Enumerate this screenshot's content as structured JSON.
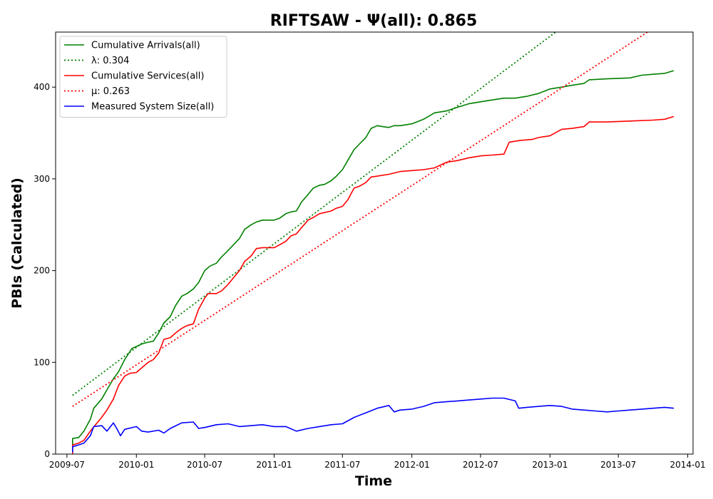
{
  "chart_data": {
    "type": "line",
    "title": "RIFTSAW -  Ψ(all): 0.865",
    "xlabel": "Time",
    "ylabel": "PBIs (Calculated)",
    "xlim": [
      "2009-06-01",
      "2014-01-15"
    ],
    "ylim": [
      0,
      460
    ],
    "x_ticks": [
      "2009-07-01",
      "2010-01-01",
      "2010-07-01",
      "2011-01-01",
      "2011-07-01",
      "2012-01-01",
      "2012-07-01",
      "2013-01-01",
      "2013-07-01",
      "2014-01-01"
    ],
    "x_tick_labels": [
      "2009-07",
      "2010-01",
      "2010-07",
      "2011-01",
      "2011-07",
      "2012-01",
      "2012-07",
      "2013-01",
      "2013-07",
      "2014-01"
    ],
    "y_ticks": [
      0,
      100,
      200,
      300,
      400
    ],
    "y_tick_labels": [
      "0",
      "100",
      "200",
      "300",
      "400"
    ],
    "grid": false,
    "legend_position": "upper-left",
    "series": [
      {
        "name": "Cumulative Arrivals(all)",
        "color": "#008000",
        "style": "solid",
        "points": [
          [
            "2009-07-16",
            0
          ],
          [
            "2009-07-16",
            17
          ],
          [
            "2009-08-01",
            18
          ],
          [
            "2009-08-15",
            25
          ],
          [
            "2009-09-01",
            38
          ],
          [
            "2009-09-10",
            50
          ],
          [
            "2009-10-01",
            60
          ],
          [
            "2009-10-15",
            70
          ],
          [
            "2009-11-01",
            82
          ],
          [
            "2009-11-15",
            90
          ],
          [
            "2009-12-01",
            103
          ],
          [
            "2009-12-20",
            115
          ],
          [
            "2010-01-15",
            120
          ],
          [
            "2010-02-01",
            122
          ],
          [
            "2010-02-15",
            123
          ],
          [
            "2010-03-01",
            132
          ],
          [
            "2010-03-15",
            143
          ],
          [
            "2010-04-01",
            150
          ],
          [
            "2010-04-15",
            162
          ],
          [
            "2010-05-01",
            172
          ],
          [
            "2010-05-15",
            175
          ],
          [
            "2010-06-01",
            180
          ],
          [
            "2010-06-15",
            187
          ],
          [
            "2010-07-01",
            200
          ],
          [
            "2010-07-15",
            205
          ],
          [
            "2010-08-01",
            208
          ],
          [
            "2010-08-15",
            215
          ],
          [
            "2010-09-01",
            222
          ],
          [
            "2010-09-15",
            228
          ],
          [
            "2010-10-01",
            235
          ],
          [
            "2010-10-15",
            245
          ],
          [
            "2010-11-01",
            250
          ],
          [
            "2010-11-15",
            253
          ],
          [
            "2010-12-01",
            255
          ],
          [
            "2011-01-01",
            255
          ],
          [
            "2011-01-15",
            257
          ],
          [
            "2011-02-01",
            262
          ],
          [
            "2011-02-15",
            264
          ],
          [
            "2011-03-01",
            265
          ],
          [
            "2011-03-15",
            275
          ],
          [
            "2011-04-01",
            283
          ],
          [
            "2011-04-15",
            290
          ],
          [
            "2011-05-01",
            293
          ],
          [
            "2011-05-15",
            294
          ],
          [
            "2011-06-01",
            298
          ],
          [
            "2011-06-15",
            303
          ],
          [
            "2011-07-01",
            310
          ],
          [
            "2011-07-15",
            320
          ],
          [
            "2011-08-01",
            332
          ],
          [
            "2011-08-15",
            338
          ],
          [
            "2011-09-01",
            345
          ],
          [
            "2011-09-15",
            355
          ],
          [
            "2011-10-01",
            358
          ],
          [
            "2011-10-15",
            357
          ],
          [
            "2011-11-01",
            356
          ],
          [
            "2011-11-15",
            358
          ],
          [
            "2011-12-01",
            358
          ],
          [
            "2012-01-01",
            360
          ],
          [
            "2012-02-01",
            365
          ],
          [
            "2012-03-01",
            372
          ],
          [
            "2012-04-01",
            374
          ],
          [
            "2012-05-01",
            378
          ],
          [
            "2012-06-01",
            382
          ],
          [
            "2012-07-01",
            384
          ],
          [
            "2012-08-01",
            386
          ],
          [
            "2012-09-01",
            388
          ],
          [
            "2012-10-01",
            388
          ],
          [
            "2012-11-01",
            390
          ],
          [
            "2012-12-01",
            393
          ],
          [
            "2013-01-01",
            398
          ],
          [
            "2013-02-01",
            400
          ],
          [
            "2013-03-01",
            402
          ],
          [
            "2013-04-01",
            404
          ],
          [
            "2013-04-15",
            408
          ],
          [
            "2013-06-01",
            409
          ],
          [
            "2013-08-01",
            410
          ],
          [
            "2013-09-01",
            413
          ],
          [
            "2013-10-01",
            414
          ],
          [
            "2013-11-01",
            415
          ],
          [
            "2013-11-25",
            418
          ]
        ]
      },
      {
        "name": "λ: 0.304",
        "color": "#008000",
        "style": "dotted",
        "points": [
          [
            "2009-07-16",
            64
          ],
          [
            "2013-12-15",
            563
          ]
        ]
      },
      {
        "name": "Cumulative Services(all)",
        "color": "#ff0000",
        "style": "solid",
        "points": [
          [
            "2009-07-16",
            0
          ],
          [
            "2009-07-16",
            10
          ],
          [
            "2009-08-01",
            12
          ],
          [
            "2009-08-15",
            15
          ],
          [
            "2009-09-01",
            25
          ],
          [
            "2009-09-15",
            32
          ],
          [
            "2009-10-01",
            40
          ],
          [
            "2009-10-15",
            48
          ],
          [
            "2009-11-01",
            60
          ],
          [
            "2009-11-15",
            75
          ],
          [
            "2009-12-01",
            85
          ],
          [
            "2009-12-15",
            88
          ],
          [
            "2010-01-01",
            89
          ],
          [
            "2010-02-01",
            100
          ],
          [
            "2010-02-15",
            103
          ],
          [
            "2010-03-01",
            110
          ],
          [
            "2010-03-15",
            125
          ],
          [
            "2010-04-01",
            127
          ],
          [
            "2010-04-15",
            132
          ],
          [
            "2010-05-01",
            137
          ],
          [
            "2010-05-15",
            140
          ],
          [
            "2010-06-01",
            142
          ],
          [
            "2010-06-15",
            158
          ],
          [
            "2010-07-01",
            170
          ],
          [
            "2010-07-10",
            175
          ],
          [
            "2010-08-01",
            175
          ],
          [
            "2010-08-15",
            178
          ],
          [
            "2010-09-01",
            185
          ],
          [
            "2010-09-15",
            192
          ],
          [
            "2010-10-01",
            200
          ],
          [
            "2010-10-15",
            210
          ],
          [
            "2010-11-01",
            216
          ],
          [
            "2010-11-15",
            224
          ],
          [
            "2010-12-01",
            225
          ],
          [
            "2011-01-01",
            225
          ],
          [
            "2011-01-15",
            228
          ],
          [
            "2011-02-01",
            232
          ],
          [
            "2011-02-15",
            238
          ],
          [
            "2011-03-01",
            240
          ],
          [
            "2011-03-15",
            247
          ],
          [
            "2011-04-01",
            255
          ],
          [
            "2011-04-15",
            258
          ],
          [
            "2011-05-01",
            262
          ],
          [
            "2011-06-01",
            265
          ],
          [
            "2011-06-15",
            268
          ],
          [
            "2011-07-01",
            270
          ],
          [
            "2011-07-15",
            277
          ],
          [
            "2011-08-01",
            290
          ],
          [
            "2011-08-15",
            292
          ],
          [
            "2011-09-01",
            296
          ],
          [
            "2011-09-15",
            302
          ],
          [
            "2011-10-01",
            303
          ],
          [
            "2011-11-01",
            305
          ],
          [
            "2011-12-01",
            308
          ],
          [
            "2012-01-01",
            309
          ],
          [
            "2012-02-01",
            310
          ],
          [
            "2012-03-01",
            312
          ],
          [
            "2012-04-01",
            318
          ],
          [
            "2012-05-01",
            320
          ],
          [
            "2012-06-01",
            323
          ],
          [
            "2012-07-01",
            325
          ],
          [
            "2012-08-01",
            326
          ],
          [
            "2012-09-01",
            327
          ],
          [
            "2012-09-15",
            340
          ],
          [
            "2012-10-15",
            342
          ],
          [
            "2012-11-15",
            343
          ],
          [
            "2012-12-01",
            345
          ],
          [
            "2013-01-01",
            347
          ],
          [
            "2013-02-01",
            354
          ],
          [
            "2013-03-01",
            355
          ],
          [
            "2013-04-01",
            357
          ],
          [
            "2013-04-15",
            362
          ],
          [
            "2013-06-01",
            362
          ],
          [
            "2013-08-01",
            363
          ],
          [
            "2013-10-01",
            364
          ],
          [
            "2013-11-01",
            365
          ],
          [
            "2013-11-25",
            368
          ]
        ]
      },
      {
        "name": "μ: 0.263",
        "color": "#ff0000",
        "style": "dotted",
        "points": [
          [
            "2009-07-16",
            52
          ],
          [
            "2013-12-15",
            484
          ]
        ]
      },
      {
        "name": "Measured System Size(all)",
        "color": "#0000ff",
        "style": "solid",
        "points": [
          [
            "2009-07-16",
            2
          ],
          [
            "2009-07-16",
            8
          ],
          [
            "2009-08-01",
            10
          ],
          [
            "2009-08-15",
            12
          ],
          [
            "2009-09-01",
            20
          ],
          [
            "2009-09-10",
            30
          ],
          [
            "2009-10-01",
            31
          ],
          [
            "2009-10-15",
            25
          ],
          [
            "2009-11-01",
            34
          ],
          [
            "2009-11-10",
            28
          ],
          [
            "2009-11-20",
            20
          ],
          [
            "2009-12-01",
            27
          ],
          [
            "2010-01-01",
            30
          ],
          [
            "2010-01-15",
            25
          ],
          [
            "2010-02-01",
            24
          ],
          [
            "2010-03-01",
            26
          ],
          [
            "2010-03-15",
            23
          ],
          [
            "2010-04-01",
            28
          ],
          [
            "2010-05-01",
            34
          ],
          [
            "2010-06-01",
            35
          ],
          [
            "2010-06-15",
            28
          ],
          [
            "2010-07-01",
            29
          ],
          [
            "2010-08-01",
            32
          ],
          [
            "2010-09-01",
            33
          ],
          [
            "2010-10-01",
            30
          ],
          [
            "2010-11-01",
            31
          ],
          [
            "2010-12-01",
            32
          ],
          [
            "2011-01-01",
            30
          ],
          [
            "2011-02-01",
            30
          ],
          [
            "2011-03-01",
            25
          ],
          [
            "2011-04-01",
            28
          ],
          [
            "2011-05-01",
            30
          ],
          [
            "2011-06-01",
            32
          ],
          [
            "2011-07-01",
            33
          ],
          [
            "2011-08-01",
            40
          ],
          [
            "2011-09-01",
            45
          ],
          [
            "2011-10-01",
            50
          ],
          [
            "2011-11-01",
            53
          ],
          [
            "2011-11-15",
            46
          ],
          [
            "2011-12-01",
            48
          ],
          [
            "2012-01-01",
            49
          ],
          [
            "2012-02-01",
            52
          ],
          [
            "2012-03-01",
            56
          ],
          [
            "2012-04-01",
            57
          ],
          [
            "2012-05-01",
            58
          ],
          [
            "2012-06-01",
            59
          ],
          [
            "2012-07-01",
            60
          ],
          [
            "2012-08-01",
            61
          ],
          [
            "2012-09-01",
            61
          ],
          [
            "2012-10-01",
            58
          ],
          [
            "2012-10-10",
            50
          ],
          [
            "2012-11-01",
            51
          ],
          [
            "2013-01-01",
            53
          ],
          [
            "2013-02-01",
            52
          ],
          [
            "2013-03-01",
            49
          ],
          [
            "2013-04-01",
            48
          ],
          [
            "2013-05-01",
            47
          ],
          [
            "2013-06-01",
            46
          ],
          [
            "2013-07-01",
            47
          ],
          [
            "2013-08-01",
            48
          ],
          [
            "2013-09-01",
            49
          ],
          [
            "2013-10-01",
            50
          ],
          [
            "2013-11-01",
            51
          ],
          [
            "2013-11-25",
            50
          ]
        ]
      }
    ]
  }
}
